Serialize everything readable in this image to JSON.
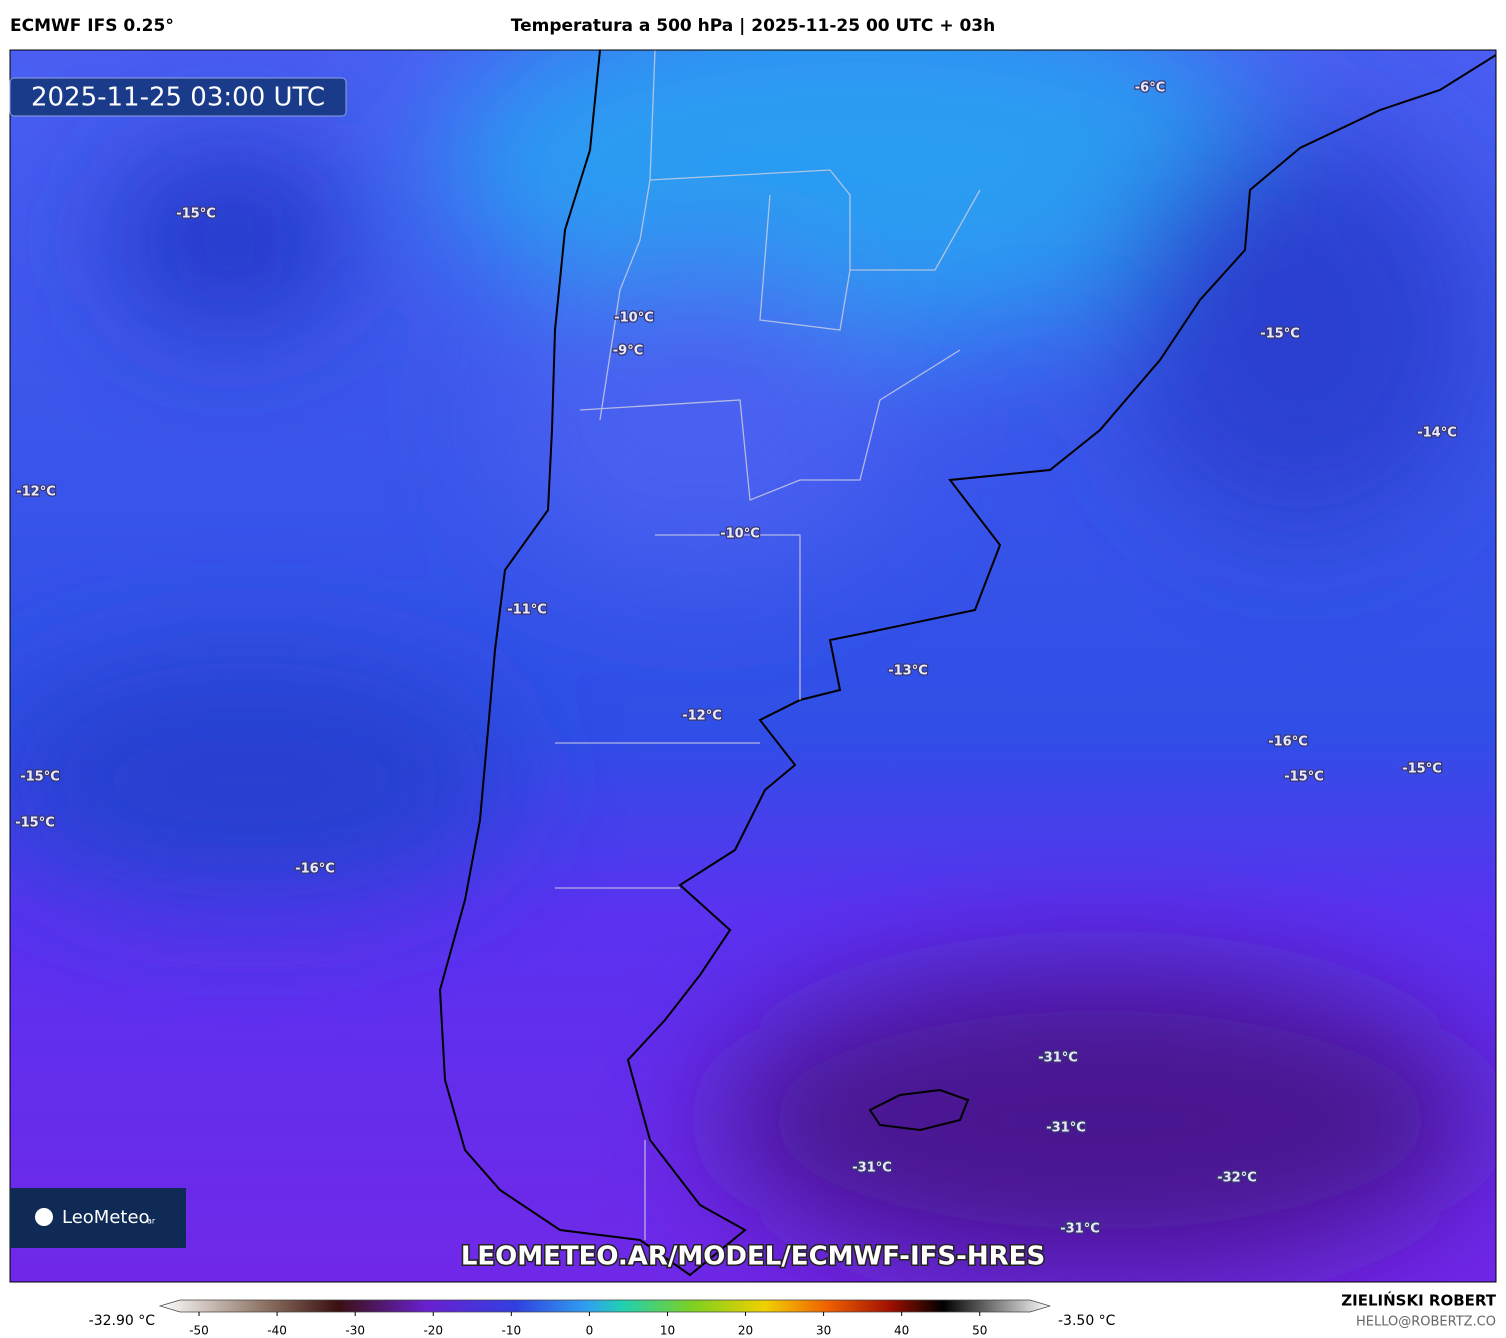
{
  "header": {
    "model": "ECMWF IFS 0.25°",
    "title": "Temperatura a 500 hPa | 2025-11-25 00 UTC + 03h"
  },
  "map": {
    "timestamp": "2025-11-25 03:00 UTC",
    "url": "LEOMETEO.AR/MODEL/ECMWF-IFS-HRES",
    "brand": "LeoMeteo",
    "brand_suffix": "ar",
    "labels": [
      "-6°C",
      "-15°C",
      "-10°C",
      "-9°C",
      "-15°C",
      "-14°C",
      "-12°C",
      "-10°C",
      "-11°C",
      "-13°C",
      "-12°C",
      "-16°C",
      "-15°C",
      "-15°C",
      "-15°C",
      "-15°C",
      "-16°C",
      "-31°C",
      "-31°C",
      "-31°C",
      "-32°C",
      "-31°C"
    ]
  },
  "colorbar": {
    "min_label": "-32.90 °C",
    "max_label": "-3.50 °C",
    "xlim": [
      -55,
      59
    ],
    "xticks": [
      -50,
      -40,
      -30,
      -20,
      -10,
      0,
      10,
      20,
      30,
      40,
      50
    ]
  },
  "footer": {
    "author": "ZIELIŃSKI ROBERT",
    "email": "HELLO@ROBERTZ.CO"
  }
}
